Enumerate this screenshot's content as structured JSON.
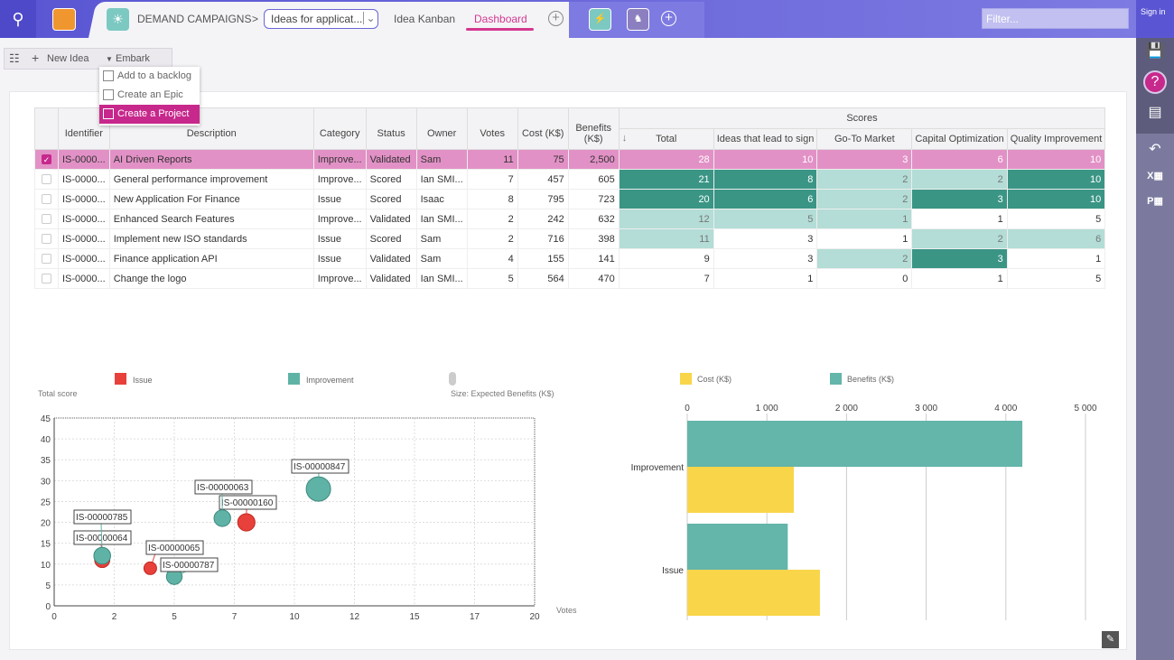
{
  "topbar": {
    "breadcrumb_root": "DEMAND CAMPAIGNS",
    "breadcrumb_sep": ">",
    "selector_value": "Ideas for applicat...",
    "tabs": [
      {
        "label": "Idea Kanban",
        "active": false
      },
      {
        "label": "Dashboard",
        "active": true
      }
    ],
    "filter_placeholder": "Filter...",
    "sign_in": "Sign in"
  },
  "toolbar": {
    "new_idea": "New Idea",
    "embark": "Embark"
  },
  "embark_menu": [
    {
      "label": "Add to a backlog",
      "active": false
    },
    {
      "label": "Create an Epic",
      "active": false
    },
    {
      "label": "Create a Project",
      "active": true
    }
  ],
  "table": {
    "headers": [
      "Identifier",
      "Description",
      "Category",
      "Status",
      "Owner",
      "Votes",
      "Cost (K$)",
      "Benefits (K$)"
    ],
    "scores_header": "Scores",
    "score_headers": [
      "Total",
      "Ideas that lead to sign",
      "Go-To Market",
      "Capital Optimization",
      "Quality Improvement"
    ],
    "sort_icon": "arrow-down",
    "rows": [
      {
        "selected": true,
        "cells": [
          "IS-0000...",
          "AI Driven Reports",
          "Improve...",
          "Validated",
          "Sam",
          "11",
          "75",
          "2,500"
        ],
        "scores": [
          "28",
          "10",
          "3",
          "6",
          "10"
        ],
        "levels": [
          "none",
          "none",
          "none",
          "none",
          "none"
        ]
      },
      {
        "selected": false,
        "cells": [
          "IS-0000...",
          "General performance improvement",
          "Improve...",
          "Scored",
          "Ian SMI...",
          "7",
          "457",
          "605"
        ],
        "scores": [
          "21",
          "8",
          "2",
          "2",
          "10"
        ],
        "levels": [
          "dark",
          "dark",
          "light",
          "light",
          "dark"
        ]
      },
      {
        "selected": false,
        "cells": [
          "IS-0000...",
          "New Application For Finance",
          "Issue",
          "Scored",
          "Isaac",
          "8",
          "795",
          "723"
        ],
        "scores": [
          "20",
          "6",
          "2",
          "3",
          "10"
        ],
        "levels": [
          "dark",
          "dark",
          "light",
          "dark",
          "dark"
        ]
      },
      {
        "selected": false,
        "cells": [
          "IS-0000...",
          "Enhanced Search Features",
          "Improve...",
          "Validated",
          "Ian SMI...",
          "2",
          "242",
          "632"
        ],
        "scores": [
          "12",
          "5",
          "1",
          "1",
          "5"
        ],
        "levels": [
          "light",
          "light",
          "light",
          "none",
          "none"
        ]
      },
      {
        "selected": false,
        "cells": [
          "IS-0000...",
          "Implement new ISO standards",
          "Issue",
          "Scored",
          "Sam",
          "2",
          "716",
          "398"
        ],
        "scores": [
          "11",
          "3",
          "1",
          "2",
          "6"
        ],
        "levels": [
          "light",
          "none",
          "none",
          "light",
          "light"
        ]
      },
      {
        "selected": false,
        "cells": [
          "IS-0000...",
          "Finance application API",
          "Issue",
          "Validated",
          "Sam",
          "4",
          "155",
          "141"
        ],
        "scores": [
          "9",
          "3",
          "2",
          "3",
          "1"
        ],
        "levels": [
          "none",
          "none",
          "light",
          "dark",
          "none"
        ]
      },
      {
        "selected": false,
        "cells": [
          "IS-0000...",
          "Change the logo",
          "Improve...",
          "Validated",
          "Ian SMI...",
          "5",
          "564",
          "470"
        ],
        "scores": [
          "7",
          "1",
          "0",
          "1",
          "5"
        ],
        "levels": [
          "none",
          "none",
          "none",
          "none",
          "none"
        ]
      }
    ]
  },
  "colors": {
    "accent": "#c7288c",
    "selected_row": "#e291c6",
    "score_dark": "#3a9585",
    "score_light": "#b3ddd6",
    "issue": "#e8403a",
    "improvement": "#5fb3a6",
    "cost": "#f9d54a",
    "benefits": "#64b5aa"
  },
  "chart_data": [
    {
      "type": "scatter",
      "ylabel": "Total score",
      "xlabel": "Votes",
      "size_label": "Size: Expected Benefits (K$)",
      "xlim": [
        0,
        20
      ],
      "ylim": [
        0,
        45
      ],
      "xticks": [
        "0",
        "2",
        "5",
        "7",
        "10",
        "12",
        "15",
        "17",
        "20"
      ],
      "yticks": [
        "0",
        "5",
        "10",
        "15",
        "20",
        "25",
        "30",
        "35",
        "40",
        "45"
      ],
      "grid": true,
      "legend": "top",
      "series": [
        {
          "name": "Issue",
          "points": [
            {
              "id": "IS-00000160",
              "x": 8,
              "y": 20,
              "size": 723
            },
            {
              "id": "IS-00000064",
              "x": 2,
              "y": 11,
              "size": 398
            },
            {
              "id": "IS-00000065",
              "x": 4,
              "y": 9,
              "size": 141
            }
          ]
        },
        {
          "name": "Improvement",
          "points": [
            {
              "id": "IS-00000847",
              "x": 11,
              "y": 28,
              "size": 2500
            },
            {
              "id": "IS-00000063",
              "x": 7,
              "y": 21,
              "size": 605
            },
            {
              "id": "IS-00000785",
              "x": 2,
              "y": 12,
              "size": 632
            },
            {
              "id": "IS-00000787",
              "x": 5,
              "y": 7,
              "size": 470
            }
          ]
        }
      ]
    },
    {
      "type": "bar",
      "orientation": "horizontal",
      "categories": [
        "Improvement",
        "Issue"
      ],
      "xlim": [
        0,
        5000
      ],
      "xticks": [
        "0",
        "1 000",
        "2 000",
        "3 000",
        "4 000",
        "5 000"
      ],
      "grid": true,
      "legend": "top",
      "series": [
        {
          "name": "Cost (K$)",
          "values": [
            1338,
            1666
          ]
        },
        {
          "name": "Benefits (K$)",
          "values": [
            4207,
            1262
          ]
        }
      ]
    }
  ]
}
